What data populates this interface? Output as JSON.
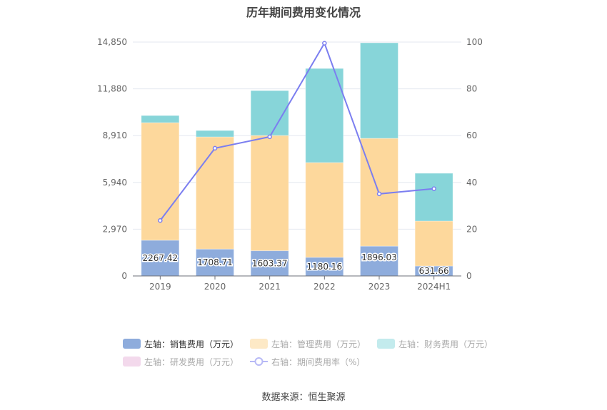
{
  "chart_data": {
    "type": "bar",
    "title": "历年期间费用变化情况",
    "categories": [
      "2019",
      "2020",
      "2021",
      "2022",
      "2023",
      "2024H1"
    ],
    "left_axis": {
      "min": 0,
      "max": 14850,
      "ticks": [
        "0",
        "2,970",
        "5,940",
        "8,910",
        "11,880",
        "14,850"
      ],
      "tick_values": [
        0,
        2970,
        5940,
        8910,
        11880,
        14850
      ]
    },
    "right_axis": {
      "min": 0,
      "max": 100,
      "ticks": [
        "0",
        "20",
        "40",
        "60",
        "80",
        "100"
      ],
      "tick_values": [
        0,
        20,
        40,
        60,
        80,
        100
      ]
    },
    "series": [
      {
        "name": "左轴：销售费用（万元）",
        "type": "bar",
        "stack": true,
        "color": "#8eacdc",
        "values": [
          2267.42,
          1708.71,
          1603.37,
          1180.16,
          1896.03,
          631.66
        ],
        "labels": [
          "2267.42",
          "1708.71",
          "1603.37",
          "1180.16",
          "1896.03",
          "631.66"
        ],
        "active": true
      },
      {
        "name": "左轴：管理费用（万元）",
        "type": "bar",
        "stack": true,
        "color": "#fdd89c",
        "legend_color": "#fde9c6",
        "values": [
          7466,
          7119,
          7315,
          6018,
          6841,
          2854
        ],
        "active": false
      },
      {
        "name": "左轴：财务费用（万元）",
        "type": "bar",
        "stack": true,
        "color": "#87d5d9",
        "legend_color": "#c3ebed",
        "values": [
          453,
          407,
          2852,
          5975,
          6066,
          3033
        ],
        "active": false
      },
      {
        "name": "左轴：研发费用（万元）",
        "type": "bar",
        "stack": true,
        "color": "#f3d9ec",
        "legend_color": "#f3d9ec",
        "values": [
          0,
          0,
          0,
          0,
          0,
          0
        ],
        "active": false
      },
      {
        "name": "右轴：期间费用率（%）",
        "type": "line",
        "axis": "right",
        "color": "#7b7ef0",
        "values": [
          23.7,
          54.6,
          59.5,
          99.5,
          35.1,
          37.3
        ],
        "active": false
      }
    ],
    "grid": true,
    "legend_position": "bottom"
  },
  "source": "数据来源：恒生聚源"
}
